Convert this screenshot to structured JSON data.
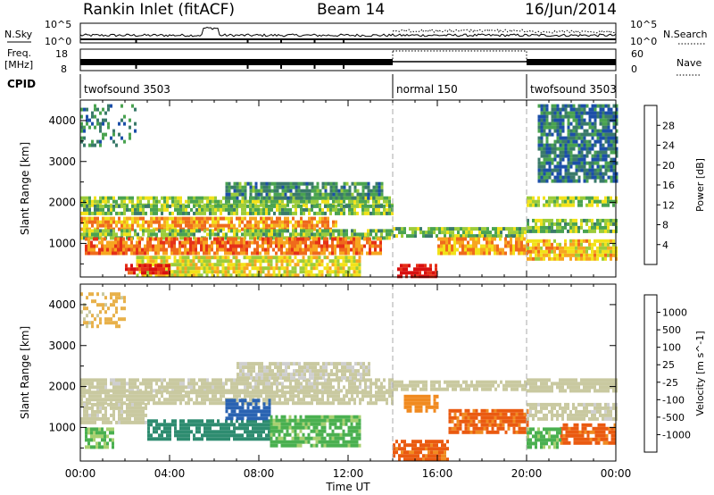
{
  "header": {
    "title": "Rankin Inlet (fitACF)",
    "beam": "Beam 14",
    "date": "16/Jun/2014"
  },
  "labels": {
    "nsky": "N.Sky",
    "nsearch": "N.Search",
    "freq_line1": "Freq.",
    "freq_line2": "[MHz]",
    "nave": "Nave",
    "cpid": "CPID",
    "noise_left_ticks": [
      "10^5",
      "10^0"
    ],
    "noise_right_ticks": [
      "10^5",
      "10^0"
    ],
    "freq_left_ticks": [
      "18",
      "8"
    ],
    "freq_right_ticks": [
      "60",
      "0"
    ]
  },
  "cpid_segments": [
    {
      "label": "twofsound 3503",
      "start_h": 0,
      "end_h": 14
    },
    {
      "label": "normal 150",
      "start_h": 14,
      "end_h": 20
    },
    {
      "label": "twofsound 3503",
      "start_h": 20,
      "end_h": 24
    }
  ],
  "colors": {
    "power_scale": [
      "#0a1cff",
      "#1c4fa8",
      "#3a7a6a",
      "#4aa350",
      "#9ccc3a",
      "#f2e21a",
      "#f7a620",
      "#ef6a1c",
      "#e53018",
      "#d81010"
    ],
    "velocity_scale": [
      "#2a3cc8",
      "#2a63b2",
      "#2e8c70",
      "#4ab050",
      "#a8d070",
      "#cfcfcf",
      "#c9c9a0",
      "#e8b14a",
      "#f08a20",
      "#ea5a10",
      "#d82010"
    ]
  },
  "chart_data": [
    {
      "type": "heatmap",
      "name": "power",
      "ylabel": "Slant Range [km]",
      "xlabel": "Time UT",
      "xlim": [
        0,
        24
      ],
      "ylim": [
        180,
        4500
      ],
      "x_ticks": [
        "00:00",
        "04:00",
        "08:00",
        "12:00",
        "16:00",
        "20:00",
        "00:00"
      ],
      "y_ticks": [
        1000,
        2000,
        3000,
        4000
      ],
      "colorbar": {
        "label": "Power [dB]",
        "ticks": [
          "28",
          "24",
          "20",
          "16",
          "12",
          "8",
          "4"
        ],
        "range": [
          0,
          30
        ]
      },
      "regions": [
        {
          "t": [
            0,
            14.0
          ],
          "r": [
            1950,
            2150
          ],
          "value": 13
        },
        {
          "t": [
            0,
            14.0
          ],
          "r": [
            1700,
            1950
          ],
          "value": 12
        },
        {
          "t": [
            0,
            11.5
          ],
          "r": [
            1350,
            1650
          ],
          "value": 20
        },
        {
          "t": [
            0,
            14.0
          ],
          "r": [
            1150,
            1350
          ],
          "value": 12
        },
        {
          "t": [
            0.2,
            13.5
          ],
          "r": [
            750,
            1150
          ],
          "value": 22
        },
        {
          "t": [
            2.5,
            12.5
          ],
          "r": [
            250,
            700
          ],
          "value": 16
        },
        {
          "t": [
            2.0,
            4.0
          ],
          "r": [
            250,
            500
          ],
          "value": 27
        },
        {
          "t": [
            14.2,
            16.0
          ],
          "r": [
            200,
            500
          ],
          "value": 29
        },
        {
          "t": [
            14.0,
            20.0
          ],
          "r": [
            1150,
            1400
          ],
          "value": 12
        },
        {
          "t": [
            16.0,
            20.0
          ],
          "r": [
            800,
            1150
          ],
          "value": 20
        },
        {
          "t": [
            20.0,
            24.0
          ],
          "r": [
            1900,
            2150
          ],
          "value": 14
        },
        {
          "t": [
            20.0,
            24.0
          ],
          "r": [
            1300,
            1600
          ],
          "value": 12
        },
        {
          "t": [
            20.0,
            24.0
          ],
          "r": [
            600,
            1100
          ],
          "value": 18
        },
        {
          "t": [
            6.5,
            13.5
          ],
          "r": [
            2150,
            2500
          ],
          "value": 9
        },
        {
          "t": [
            0,
            2.5
          ],
          "r": [
            3400,
            4400
          ],
          "value": 8
        },
        {
          "t": [
            20.5,
            24.0
          ],
          "r": [
            2500,
            4400
          ],
          "value": 7
        }
      ]
    },
    {
      "type": "heatmap",
      "name": "velocity",
      "ylabel": "Slant Range [km]",
      "xlabel": "Time UT",
      "xlim": [
        0,
        24
      ],
      "ylim": [
        180,
        4500
      ],
      "x_ticks": [
        "00:00",
        "04:00",
        "08:00",
        "12:00",
        "16:00",
        "20:00",
        "00:00"
      ],
      "y_ticks": [
        1000,
        2000,
        3000,
        4000
      ],
      "colorbar": {
        "label": "Velocity [m s^-1]",
        "ticks": [
          "1000",
          "500",
          "100",
          "25",
          "-25",
          "-100",
          "-500",
          "-1000"
        ],
        "range": [
          -1000,
          1000
        ]
      },
      "regions": [
        {
          "t": [
            0,
            14.0
          ],
          "r": [
            1900,
            2200
          ],
          "value": 10
        },
        {
          "t": [
            0,
            14.0
          ],
          "r": [
            1600,
            1900
          ],
          "value": 5
        },
        {
          "t": [
            0,
            3.0
          ],
          "r": [
            1100,
            1600
          ],
          "value": 8
        },
        {
          "t": [
            3.0,
            8.5
          ],
          "r": [
            700,
            1200
          ],
          "value": 400
        },
        {
          "t": [
            6.5,
            8.5
          ],
          "r": [
            1200,
            1700
          ],
          "value": 700
        },
        {
          "t": [
            8.5,
            12.5
          ],
          "r": [
            600,
            1300
          ],
          "value": 120
        },
        {
          "t": [
            0.2,
            1.5
          ],
          "r": [
            500,
            1000
          ],
          "value": 100
        },
        {
          "t": [
            14.0,
            20.0
          ],
          "r": [
            1900,
            2150
          ],
          "value": 0
        },
        {
          "t": [
            14.0,
            16.5
          ],
          "r": [
            200,
            700
          ],
          "value": -300
        },
        {
          "t": [
            16.5,
            20.0
          ],
          "r": [
            900,
            1450
          ],
          "value": -300
        },
        {
          "t": [
            14.5,
            16.0
          ],
          "r": [
            1400,
            1800
          ],
          "value": -200
        },
        {
          "t": [
            20.0,
            24.0
          ],
          "r": [
            1900,
            2200
          ],
          "value": 0
        },
        {
          "t": [
            20.0,
            24.0
          ],
          "r": [
            1200,
            1600
          ],
          "value": 10
        },
        {
          "t": [
            21.5,
            24.0
          ],
          "r": [
            600,
            1100
          ],
          "value": -300
        },
        {
          "t": [
            20.0,
            21.5
          ],
          "r": [
            500,
            1000
          ],
          "value": 120
        },
        {
          "t": [
            0,
            2.0
          ],
          "r": [
            3500,
            4300
          ],
          "value": -40
        },
        {
          "t": [
            7.0,
            13.0
          ],
          "r": [
            2200,
            2600
          ],
          "value": 20
        }
      ]
    }
  ]
}
